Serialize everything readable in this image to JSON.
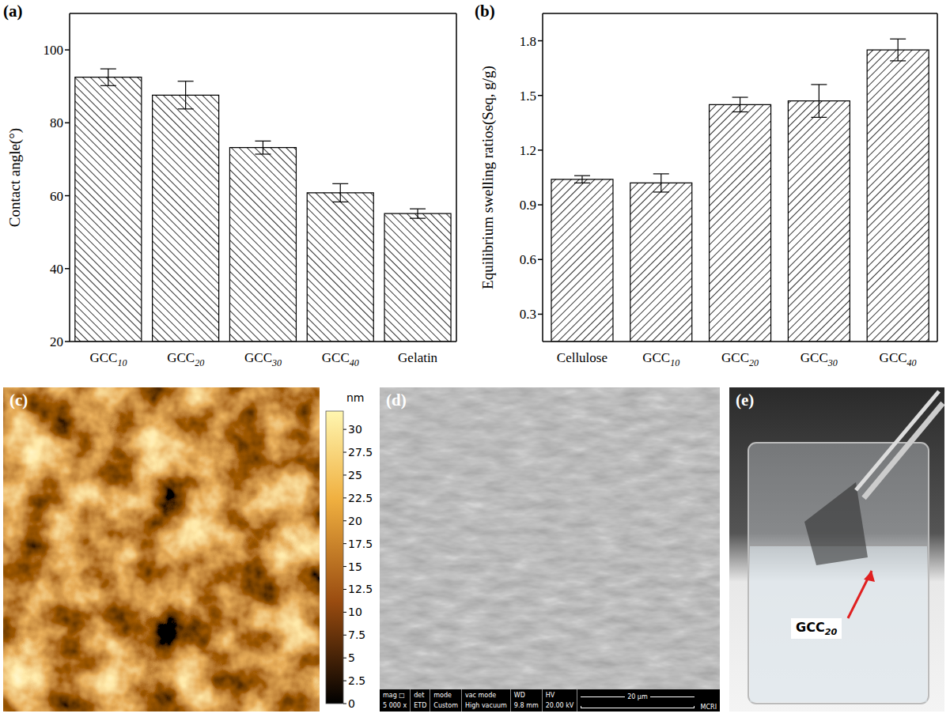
{
  "chart_data": [
    {
      "panel": "(a)",
      "type": "bar",
      "categories": [
        "GCC10",
        "GCC20",
        "GCC30",
        "GCC40",
        "Gelatin"
      ],
      "values": [
        92.5,
        87.6,
        73.2,
        60.8,
        55.1
      ],
      "errors": [
        2.3,
        3.8,
        1.8,
        2.5,
        1.3
      ],
      "y_label": "Contact angle(°)",
      "ylim": [
        20,
        110
      ],
      "yticks": [
        20,
        40,
        60,
        80,
        100
      ],
      "color": "#000000",
      "grid": false
    },
    {
      "panel": "(b)",
      "type": "bar",
      "categories": [
        "Cellulose",
        "GCC10",
        "GCC20",
        "GCC30",
        "GCC40"
      ],
      "values": [
        1.04,
        1.02,
        1.45,
        1.47,
        1.75
      ],
      "errors": [
        0.02,
        0.05,
        0.04,
        0.09,
        0.06
      ],
      "y_label": "Equilibrium swelling ratios(Seq, g/g)",
      "ylim": [
        0.15,
        1.95
      ],
      "yticks": [
        0.3,
        0.6,
        0.9,
        1.2,
        1.5,
        1.8
      ],
      "color": "#000000",
      "grid": false
    },
    {
      "panel": "(c)",
      "type": "image",
      "colorbar": {
        "label": "nm",
        "range": [
          0,
          32
        ],
        "ticks": [
          0,
          2.5,
          5,
          7.5,
          10,
          12.5,
          15,
          17.5,
          20,
          22.5,
          25,
          27.5,
          30
        ]
      }
    },
    {
      "panel": "(d)",
      "type": "image",
      "info_bar": [
        [
          "mag □",
          "5 000 x"
        ],
        [
          "det",
          "ETD"
        ],
        [
          "mode",
          "Custom"
        ],
        [
          "vac mode",
          "High vacuum"
        ],
        [
          "WD",
          "9.8 mm"
        ],
        [
          "HV",
          "20.00 kV"
        ]
      ],
      "scale_bar": "20 μm",
      "logo": "MCRI"
    },
    {
      "panel": "(e)",
      "type": "image",
      "annotation": "GCC20"
    }
  ]
}
